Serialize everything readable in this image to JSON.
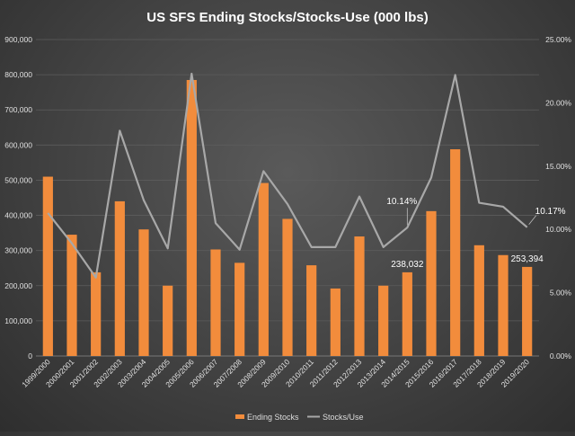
{
  "chart_data": {
    "type": "bar",
    "title": "US SFS Ending Stocks/Stocks-Use (000 lbs)",
    "categories": [
      "1999/2000",
      "2000/2001",
      "2001/2002",
      "2002/2003",
      "2003/2004",
      "2004/2005",
      "2005/2006",
      "2006/2007",
      "2007/2008",
      "2008/2009",
      "2009/2010",
      "2010/2011",
      "2011/2012",
      "2012/2013",
      "2013/2014",
      "2014/2015",
      "2015/2016",
      "2016/2017",
      "2017/2018",
      "2018/2019",
      "2019/2020"
    ],
    "series": [
      {
        "name": "Ending Stocks",
        "type": "bar",
        "axis": "left",
        "color": "#f28c3c",
        "values": [
          510000,
          345000,
          238000,
          440000,
          360000,
          200000,
          785000,
          303000,
          265000,
          492000,
          390000,
          258000,
          192000,
          340000,
          200000,
          238032,
          412000,
          588000,
          315000,
          287000,
          253394
        ]
      },
      {
        "name": "Stocks/Use",
        "type": "line",
        "axis": "right",
        "color": "#a8a8a8",
        "values": [
          11.3,
          8.9,
          6.2,
          17.8,
          12.3,
          8.5,
          22.3,
          10.5,
          8.4,
          14.6,
          12.0,
          8.6,
          8.6,
          12.6,
          8.6,
          10.14,
          14.1,
          22.2,
          12.1,
          11.8,
          10.17
        ]
      }
    ],
    "y_left": {
      "min": 0,
      "max": 900000,
      "ticks": [
        "0",
        "100,000",
        "200,000",
        "300,000",
        "400,000",
        "500,000",
        "600,000",
        "700,000",
        "800,000",
        "900,000"
      ]
    },
    "y_right": {
      "min": 0,
      "max": 25,
      "ticks": [
        "0.00%",
        "5.00%",
        "10.00%",
        "15.00%",
        "20.00%",
        "25.00%"
      ]
    },
    "annotations": [
      {
        "text": "238,032",
        "series": 0,
        "index": 15
      },
      {
        "text": "253,394",
        "series": 0,
        "index": 20
      },
      {
        "text": "10.14%",
        "series": 1,
        "index": 15
      },
      {
        "text": "10.17%",
        "series": 1,
        "index": 20
      }
    ],
    "legend": {
      "placement": "bottom",
      "entries": [
        "Ending Stocks",
        "Stocks/Use"
      ]
    },
    "grid": true
  }
}
